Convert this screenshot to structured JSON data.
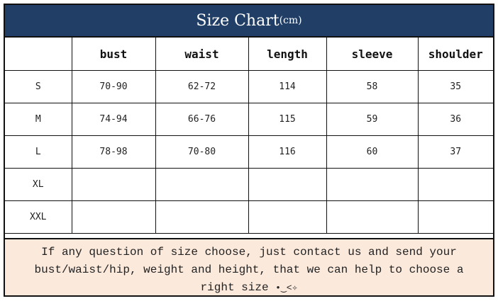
{
  "title": "Size Chart",
  "title_unit": "(cm)",
  "columns": [
    "",
    "bust",
    "waist",
    "length",
    "sleeve",
    "shoulder"
  ],
  "rows": [
    [
      "S",
      "70-90",
      "62-72",
      "114",
      "58",
      "35"
    ],
    [
      "M",
      "74-94",
      "66-76",
      "115",
      "59",
      "36"
    ],
    [
      "L",
      "78-98",
      "70-80",
      "116",
      "60",
      "37"
    ],
    [
      "XL",
      "",
      "",
      "",
      "",
      ""
    ],
    [
      "XXL",
      "",
      "",
      "",
      "",
      ""
    ]
  ],
  "note": "If any question of size choose, just contact us and send your bust/waist/hip, weight and height, that we can help to choose a right size",
  "note_emoticon": "•‿<✧",
  "colors": {
    "header_bg": "#213f66",
    "note_bg": "#fbe9dc"
  }
}
